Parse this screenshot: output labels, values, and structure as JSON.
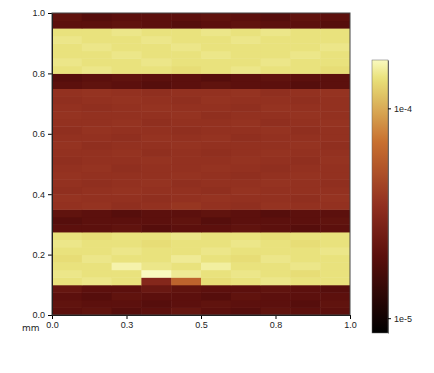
{
  "chart_data": {
    "type": "heatmap",
    "xlabel": "mm",
    "xlim": [
      0,
      1
    ],
    "ylim": [
      0,
      1
    ],
    "xticks": [
      {
        "value": 0,
        "label": "0.0"
      },
      {
        "value": 0.25,
        "label": "0.3"
      },
      0.5,
      {
        "value": 0.75,
        "label": "0.8"
      },
      {
        "value": 1,
        "label": "1.0"
      }
    ],
    "yticks": [
      {
        "value": 0,
        "label": "0.0"
      },
      0.2,
      0.4,
      0.6,
      0.8,
      {
        "value": 1,
        "label": "1.0"
      }
    ],
    "x": [
      0.05,
      0.15,
      0.25,
      0.35,
      0.45,
      0.55,
      0.65,
      0.75,
      0.85,
      0.95
    ],
    "y": [
      0.0125,
      0.0375,
      0.0625,
      0.0875,
      0.1125,
      0.1375,
      0.1625,
      0.1875,
      0.2125,
      0.2375,
      0.2625,
      0.2875,
      0.3125,
      0.3375,
      0.3625,
      0.3875,
      0.4125,
      0.4375,
      0.4625,
      0.4875,
      0.5125,
      0.5375,
      0.5625,
      0.5875,
      0.6125,
      0.6375,
      0.6625,
      0.6875,
      0.7125,
      0.7375,
      0.7625,
      0.7875,
      0.8125,
      0.8375,
      0.8625,
      0.8875,
      0.9125,
      0.9375,
      0.9625,
      0.9875
    ],
    "z": [
      [
        2e-05,
        2.1e-05,
        1.9e-05,
        2e-05,
        2.2e-05,
        2e-05,
        1.9e-05,
        2.1e-05,
        2e-05,
        2e-05
      ],
      [
        2.1e-05,
        2e-05,
        2e-05,
        1.9e-05,
        2e-05,
        2.1e-05,
        2e-05,
        2e-05,
        1.9e-05,
        2.1e-05
      ],
      [
        2e-05,
        1.9e-05,
        2.1e-05,
        2e-05,
        2e-05,
        1.9e-05,
        2.1e-05,
        2e-05,
        2e-05,
        2e-05
      ],
      [
        2.2e-05,
        2e-05,
        2e-05,
        2.3e-05,
        2.1e-05,
        2e-05,
        2e-05,
        2.1e-05,
        2e-05,
        1.9e-05
      ],
      [
        0.00014,
        0.000145,
        0.00014,
        3e-05,
        6e-05,
        0.000135,
        0.00014,
        0.000145,
        0.00014,
        0.00014
      ],
      [
        0.000145,
        0.00014,
        0.00014,
        0.00017,
        0.00015,
        0.00014,
        0.000145,
        0.00014,
        0.000135,
        0.00014
      ],
      [
        0.00014,
        0.00014,
        0.00016,
        0.000145,
        0.00014,
        0.000155,
        0.00014,
        0.00014,
        0.000145,
        0.00014
      ],
      [
        0.000135,
        0.000145,
        0.00014,
        0.00014,
        0.00015,
        0.00014,
        0.000135,
        0.000145,
        0.00014,
        0.00014
      ],
      [
        0.00014,
        0.00014,
        0.000145,
        0.00014,
        0.00014,
        0.000145,
        0.00014,
        0.00014,
        0.00014,
        0.000145
      ],
      [
        0.000145,
        0.00014,
        0.00014,
        0.000135,
        0.00014,
        0.00014,
        0.000145,
        0.00014,
        0.000135,
        0.00014
      ],
      [
        0.00014,
        0.000135,
        0.00014,
        0.00014,
        0.000145,
        0.00014,
        0.00014,
        0.000135,
        0.00014,
        0.00014
      ],
      [
        2e-05,
        2e-05,
        2.1e-05,
        1.9e-05,
        2e-05,
        2e-05,
        2.1e-05,
        2e-05,
        1.9e-05,
        2e-05
      ],
      [
        1.9e-05,
        2e-05,
        2e-05,
        2e-05,
        2.1e-05,
        1.9e-05,
        2e-05,
        2e-05,
        2e-05,
        2.1e-05
      ],
      [
        2.1e-05,
        2e-05,
        1.9e-05,
        2e-05,
        2e-05,
        2.1e-05,
        2e-05,
        1.9e-05,
        2e-05,
        2e-05
      ],
      [
        3.5e-05,
        3.6e-05,
        3.4e-05,
        3.5e-05,
        3.7e-05,
        3.5e-05,
        3.4e-05,
        3.6e-05,
        3.5e-05,
        3.5e-05
      ],
      [
        3.6e-05,
        3.5e-05,
        3.5e-05,
        3.4e-05,
        3.5e-05,
        3.6e-05,
        3.5e-05,
        3.5e-05,
        3.4e-05,
        3.6e-05
      ],
      [
        3.4e-05,
        3.5e-05,
        3.6e-05,
        3.5e-05,
        3.5e-05,
        3.4e-05,
        3.6e-05,
        3.5e-05,
        3.5e-05,
        3.5e-05
      ],
      [
        3.5e-05,
        3.4e-05,
        3.5e-05,
        3.6e-05,
        3.4e-05,
        3.5e-05,
        3.5e-05,
        3.6e-05,
        3.5e-05,
        3.4e-05
      ],
      [
        3.6e-05,
        3.5e-05,
        3.5e-05,
        3.5e-05,
        3.6e-05,
        3.5e-05,
        3.4e-05,
        3.5e-05,
        3.6e-05,
        3.5e-05
      ],
      [
        3.5e-05,
        3.6e-05,
        3.4e-05,
        3.5e-05,
        3.5e-05,
        3.6e-05,
        3.5e-05,
        3.4e-05,
        3.5e-05,
        3.5e-05
      ],
      [
        3.4e-05,
        3.5e-05,
        3.5e-05,
        3.6e-05,
        3.5e-05,
        3.5e-05,
        3.6e-05,
        3.5e-05,
        3.4e-05,
        3.6e-05
      ],
      [
        3.5e-05,
        3.5e-05,
        3.6e-05,
        3.4e-05,
        3.5e-05,
        3.4e-05,
        3.5e-05,
        3.6e-05,
        3.5e-05,
        3.5e-05
      ],
      [
        3.6e-05,
        3.4e-05,
        3.5e-05,
        3.5e-05,
        3.6e-05,
        3.5e-05,
        3.5e-05,
        3.5e-05,
        3.6e-05,
        3.4e-05
      ],
      [
        3.5e-05,
        3.5e-05,
        3.4e-05,
        3.6e-05,
        3.5e-05,
        3.6e-05,
        3.4e-05,
        3.5e-05,
        3.5e-05,
        3.5e-05
      ],
      [
        3.4e-05,
        3.6e-05,
        3.5e-05,
        3.5e-05,
        3.4e-05,
        3.5e-05,
        3.5e-05,
        3.6e-05,
        3.4e-05,
        3.5e-05
      ],
      [
        3.5e-05,
        3.5e-05,
        3.6e-05,
        3.4e-05,
        3.5e-05,
        3.5e-05,
        3.6e-05,
        3.4e-05,
        3.5e-05,
        3.6e-05
      ],
      [
        3.6e-05,
        3.5e-05,
        3.5e-05,
        3.5e-05,
        3.6e-05,
        3.4e-05,
        3.5e-05,
        3.5e-05,
        3.6e-05,
        3.5e-05
      ],
      [
        3.5e-05,
        3.4e-05,
        3.5e-05,
        3.6e-05,
        3.5e-05,
        3.5e-05,
        3.4e-05,
        3.6e-05,
        3.5e-05,
        3.5e-05
      ],
      [
        3.4e-05,
        3.5e-05,
        3.6e-05,
        3.5e-05,
        3.4e-05,
        3.6e-05,
        3.5e-05,
        3.5e-05,
        3.4e-05,
        3.5e-05
      ],
      [
        3.5e-05,
        3.6e-05,
        3.5e-05,
        3.4e-05,
        3.5e-05,
        3.5e-05,
        3.6e-05,
        3.4e-05,
        3.5e-05,
        3.6e-05
      ],
      [
        2e-05,
        2.1e-05,
        2e-05,
        1.9e-05,
        2e-05,
        2.1e-05,
        2e-05,
        2e-05,
        1.9e-05,
        2e-05
      ],
      [
        1.9e-05,
        2e-05,
        2.1e-05,
        2e-05,
        2e-05,
        1.9e-05,
        2e-05,
        2.1e-05,
        2e-05,
        2e-05
      ],
      [
        0.00014,
        0.000145,
        0.00014,
        0.00014,
        0.000135,
        0.00014,
        0.000145,
        0.00014,
        0.00014,
        0.000135
      ],
      [
        0.000145,
        0.00014,
        0.00014,
        0.000145,
        0.00014,
        0.00014,
        0.00014,
        0.000145,
        0.00014,
        0.00014
      ],
      [
        0.00014,
        0.00014,
        0.000145,
        0.00014,
        0.00014,
        0.000145,
        0.00014,
        0.00014,
        0.000145,
        0.00014
      ],
      [
        0.00014,
        0.000145,
        0.00014,
        0.00014,
        0.000145,
        0.00014,
        0.00014,
        0.00014,
        0.00014,
        0.000145
      ],
      [
        0.000145,
        0.00014,
        0.00014,
        0.000145,
        0.00014,
        0.00014,
        0.000145,
        0.00014,
        0.00014,
        0.00014
      ],
      [
        0.00014,
        0.00014,
        0.000145,
        0.00014,
        0.00014,
        0.000145,
        0.00014,
        0.000145,
        0.00014,
        0.00014
      ],
      [
        2e-05,
        2e-05,
        2.1e-05,
        2e-05,
        1.9e-05,
        2e-05,
        2.1e-05,
        2e-05,
        2e-05,
        1.9e-05
      ],
      [
        2.1e-05,
        1.9e-05,
        2e-05,
        2e-05,
        2e-05,
        2.1e-05,
        2e-05,
        1.9e-05,
        2.1e-05,
        2e-05
      ]
    ],
    "colorbar": {
      "log": true,
      "range": [
        8.5e-06,
        0.00017
      ],
      "ticks": [
        {
          "value": 1e-05,
          "label": "1e-5"
        },
        {
          "value": 0.0001,
          "label": "1e-4"
        }
      ]
    }
  }
}
